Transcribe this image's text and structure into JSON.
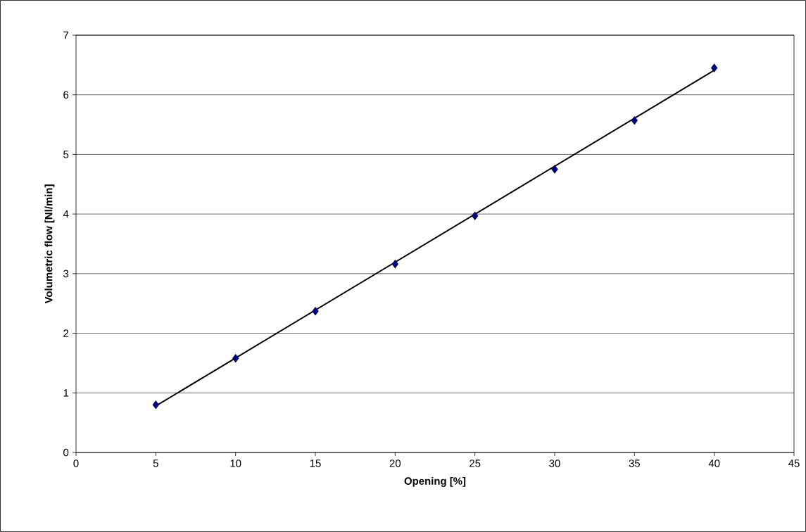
{
  "chart_data": {
    "type": "scatter",
    "xlabel": "Opening [%]",
    "ylabel": "Volumetric flow [Nl/min]",
    "xlim": [
      0,
      45
    ],
    "ylim": [
      0,
      7
    ],
    "xticks": [
      0,
      5,
      10,
      15,
      20,
      25,
      30,
      35,
      40,
      45
    ],
    "yticks": [
      0,
      1,
      2,
      3,
      4,
      5,
      6,
      7
    ],
    "grid": "y",
    "series": [
      {
        "color": "#000080",
        "marker": "diamond",
        "x": [
          5,
          10,
          15,
          20,
          25,
          30,
          35,
          40
        ],
        "values": [
          0.8,
          1.58,
          2.37,
          3.16,
          3.97,
          4.75,
          5.57,
          6.45
        ]
      },
      {
        "type": "line",
        "color": "#000000",
        "marker": "none",
        "line_style": "solid",
        "x": [
          5,
          40
        ],
        "values": [
          0.78,
          6.41
        ]
      }
    ]
  }
}
